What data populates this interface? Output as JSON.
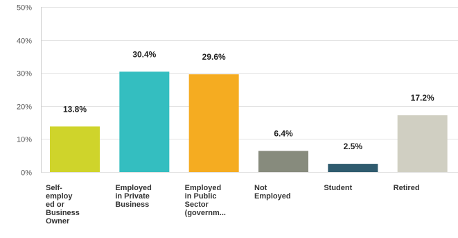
{
  "chart_data": {
    "type": "bar",
    "categories": [
      "Self-employ ed or Business Owner",
      "Employed in Private Business",
      "Employed in Public Sector (governm...",
      "Not Employed",
      "Student",
      "Retired"
    ],
    "category_lines": [
      [
        "Self-",
        "employ",
        "ed or",
        "Business",
        "Owner"
      ],
      [
        "Employed",
        "in Private",
        "Business"
      ],
      [
        "Employed",
        "in Public",
        "Sector",
        "(governm..."
      ],
      [
        "Not",
        "Employed"
      ],
      [
        "Student"
      ],
      [
        "Retired"
      ]
    ],
    "values": [
      13.8,
      30.4,
      29.6,
      6.4,
      2.5,
      17.2
    ],
    "value_labels": [
      "13.8%",
      "30.4%",
      "29.6%",
      "6.4%",
      "2.5%",
      "17.2%"
    ],
    "colors": [
      "#cfd42b",
      "#34bec0",
      "#f5ac21",
      "#878b7d",
      "#2f5b6e",
      "#d0cfc2"
    ],
    "title": "",
    "xlabel": "",
    "ylabel": "",
    "ylim": [
      0,
      50
    ],
    "yticks": [
      0,
      10,
      20,
      30,
      40,
      50
    ],
    "ytick_labels": [
      "0%",
      "10%",
      "20%",
      "30%",
      "40%",
      "50%"
    ],
    "grid": true,
    "legend": "none"
  }
}
